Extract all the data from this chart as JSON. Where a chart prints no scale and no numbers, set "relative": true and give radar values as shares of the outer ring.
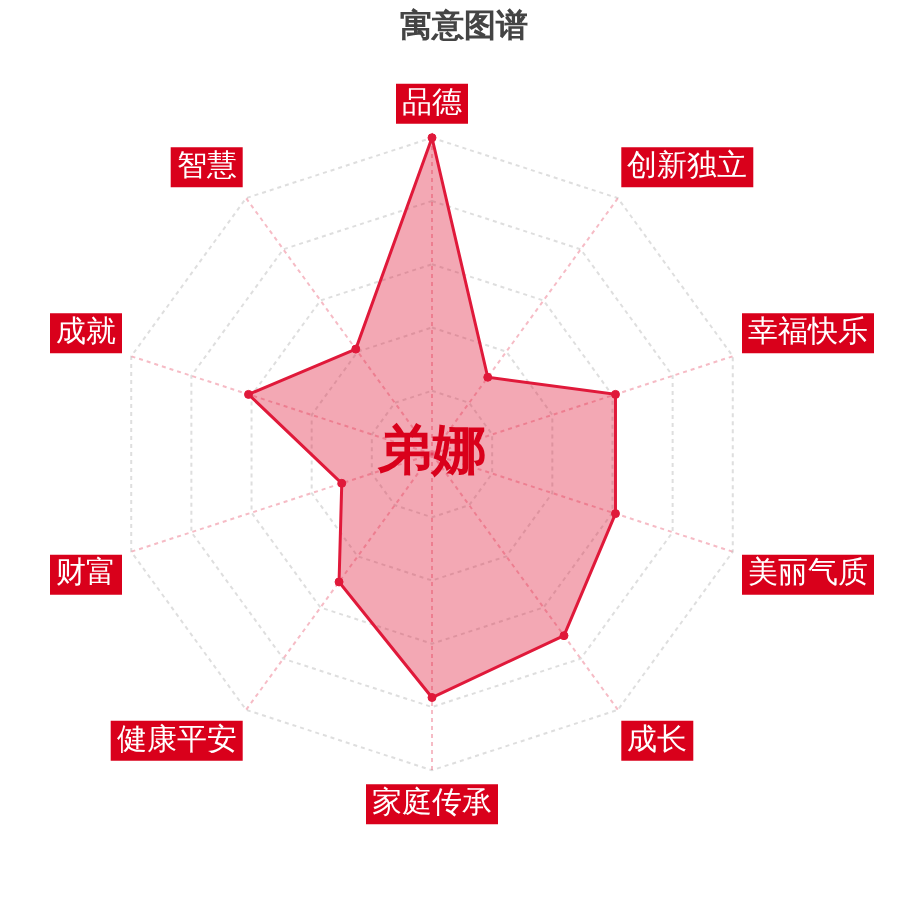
{
  "chart_data": {
    "type": "radar",
    "title": "寓意图谱",
    "categories": [
      "品德",
      "创新独立",
      "幸福快乐",
      "美丽气质",
      "成长",
      "家庭传承",
      "健康平安",
      "财富",
      "成就",
      "智慧"
    ],
    "relative": true,
    "series": [
      {
        "color": "#e0193a",
        "values": [
          1.0,
          0.3,
          0.61,
          0.61,
          0.71,
          0.77,
          0.5,
          0.3,
          0.61,
          0.41
        ]
      }
    ],
    "annotations": [
      "弟娜"
    ],
    "grid": true,
    "marker": "circle"
  }
}
